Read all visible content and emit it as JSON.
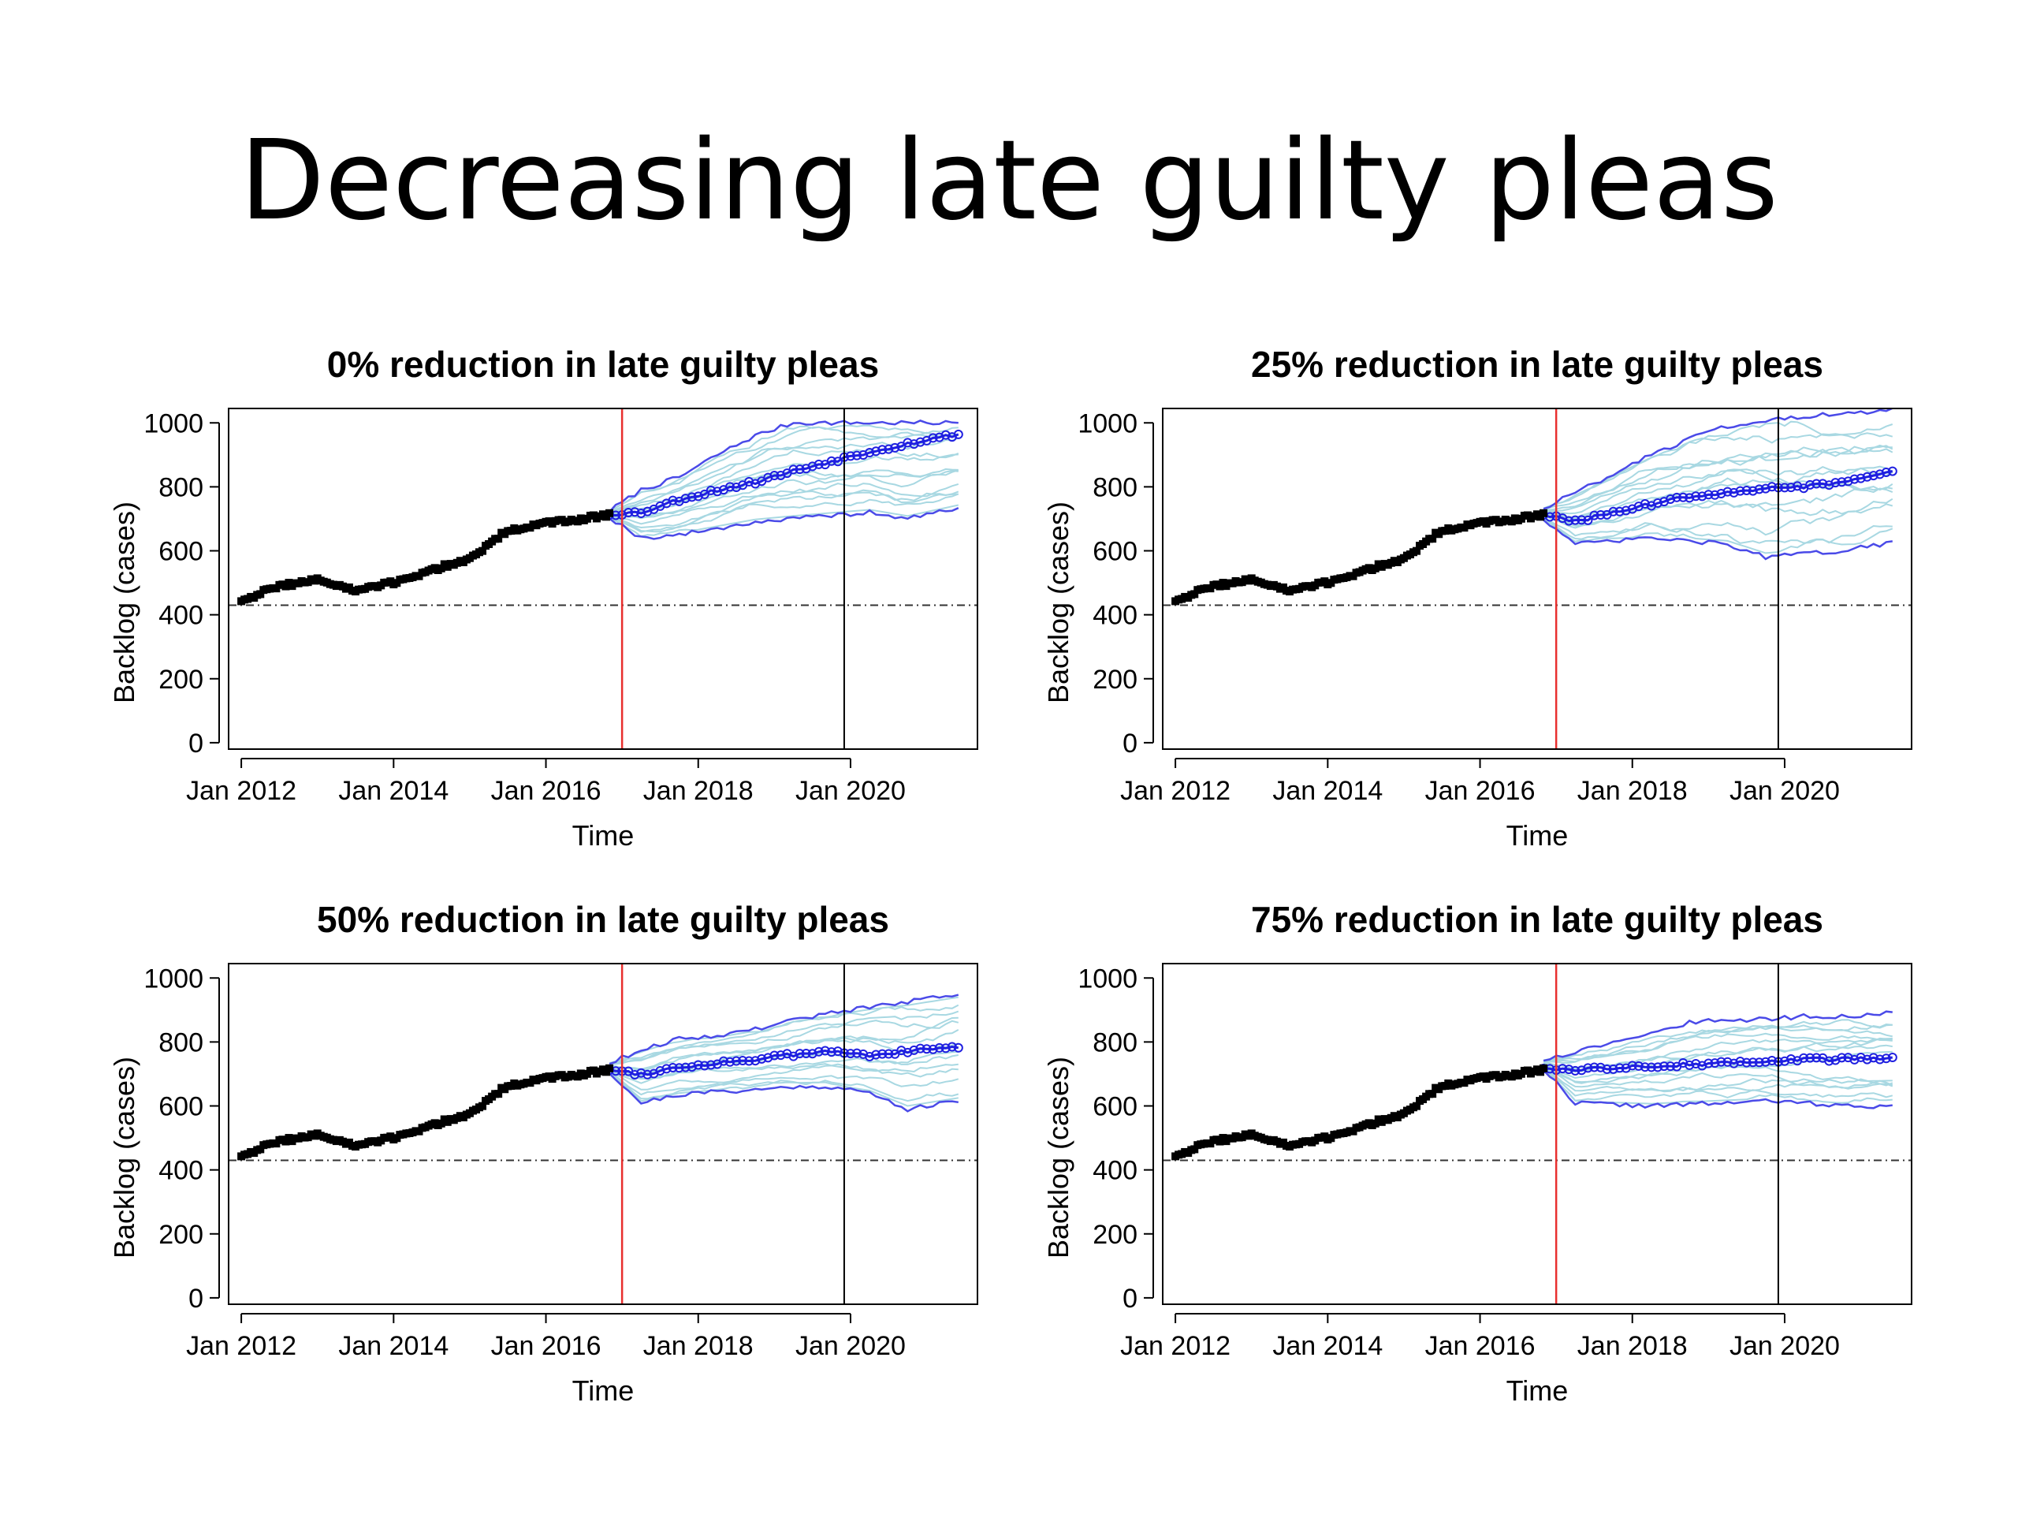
{
  "slide": {
    "title": "Decreasing late guilty pleas"
  },
  "colors": {
    "observed": "#000000",
    "median": "#1f1fe0",
    "interval": "#4a4ae8",
    "simulations": "#a8d8e2",
    "intervention_line": "#e8302f",
    "current_line": "#000000",
    "reference_line": "#333333"
  },
  "chart_data": [
    {
      "type": "line",
      "title": "0% reduction in late guilty pleas",
      "xlabel": "Time",
      "ylabel": "Backlog (cases)",
      "x_ticks": [
        "Jan 2012",
        "Jan 2014",
        "Jan 2016",
        "Jan 2018",
        "Jan 2020"
      ],
      "y_ticks": [
        0,
        200,
        400,
        600,
        800,
        1000
      ],
      "ylim": [
        0,
        1000
      ],
      "xlim": [
        "2011-11",
        "2021-09"
      ],
      "reference_level": 430,
      "intervention_date": "2017-01",
      "current_date": "2019-12",
      "series": [
        {
          "x": [
            "2012-01",
            "2012-07",
            "2013-01",
            "2013-07",
            "2014-01",
            "2014-07",
            "2015-01",
            "2015-07",
            "2016-01",
            "2016-07",
            "2016-11"
          ],
          "values": [
            445,
            490,
            510,
            475,
            500,
            540,
            575,
            665,
            685,
            700,
            715
          ]
        },
        {
          "x": [
            "2016-11",
            "2017-04",
            "2017-10",
            "2018-04",
            "2018-10",
            "2019-04",
            "2019-10",
            "2020-04",
            "2020-10",
            "2021-06"
          ],
          "values": [
            715,
            720,
            760,
            790,
            815,
            850,
            880,
            910,
            935,
            965
          ]
        },
        {
          "x": [
            "2016-11",
            "2017-04",
            "2017-10",
            "2018-04",
            "2018-10",
            "2019-04",
            "2019-10",
            "2020-04",
            "2020-10",
            "2021-06"
          ],
          "values": [
            725,
            790,
            830,
            900,
            960,
            1000,
            1000,
            1000,
            1000,
            1000
          ]
        },
        {
          "x": [
            "2016-11",
            "2017-04",
            "2017-10",
            "2018-04",
            "2018-10",
            "2019-04",
            "2019-10",
            "2020-04",
            "2020-10",
            "2021-06"
          ],
          "values": [
            705,
            640,
            650,
            670,
            690,
            700,
            710,
            720,
            700,
            735
          ]
        }
      ]
    },
    {
      "type": "line",
      "title": "25% reduction in late guilty pleas",
      "xlabel": "Time",
      "ylabel": "Backlog (cases)",
      "x_ticks": [
        "Jan 2012",
        "Jan 2014",
        "Jan 2016",
        "Jan 2018",
        "Jan 2020"
      ],
      "y_ticks": [
        0,
        200,
        400,
        600,
        800,
        1000
      ],
      "ylim": [
        0,
        1000
      ],
      "xlim": [
        "2011-11",
        "2021-09"
      ],
      "reference_level": 430,
      "intervention_date": "2017-01",
      "current_date": "2019-12",
      "series": [
        {
          "x": [
            "2012-01",
            "2012-07",
            "2013-01",
            "2013-07",
            "2014-01",
            "2014-07",
            "2015-01",
            "2015-07",
            "2016-01",
            "2016-07",
            "2016-11"
          ],
          "values": [
            445,
            490,
            510,
            475,
            500,
            540,
            575,
            665,
            685,
            700,
            715
          ]
        },
        {
          "x": [
            "2016-11",
            "2017-04",
            "2017-10",
            "2018-04",
            "2018-10",
            "2019-04",
            "2019-10",
            "2020-04",
            "2020-10",
            "2021-06"
          ],
          "values": [
            715,
            690,
            720,
            745,
            770,
            785,
            795,
            800,
            815,
            845
          ]
        },
        {
          "x": [
            "2016-11",
            "2017-04",
            "2017-10",
            "2018-04",
            "2018-10",
            "2019-04",
            "2019-10",
            "2020-04",
            "2020-10",
            "2021-06"
          ],
          "values": [
            735,
            780,
            840,
            900,
            950,
            990,
            1010,
            1020,
            1030,
            1040
          ]
        },
        {
          "x": [
            "2016-11",
            "2017-04",
            "2017-10",
            "2018-04",
            "2018-10",
            "2019-04",
            "2019-10",
            "2020-04",
            "2020-10",
            "2021-06"
          ],
          "values": [
            700,
            620,
            630,
            640,
            630,
            620,
            580,
            590,
            600,
            625
          ]
        }
      ]
    },
    {
      "type": "line",
      "title": "50% reduction in late guilty pleas",
      "xlabel": "Time",
      "ylabel": "Backlog (cases)",
      "x_ticks": [
        "Jan 2012",
        "Jan 2014",
        "Jan 2016",
        "Jan 2018",
        "Jan 2020"
      ],
      "y_ticks": [
        0,
        200,
        400,
        600,
        800,
        1000
      ],
      "ylim": [
        0,
        1000
      ],
      "xlim": [
        "2011-11",
        "2021-09"
      ],
      "reference_level": 430,
      "intervention_date": "2017-01",
      "current_date": "2019-12",
      "series": [
        {
          "x": [
            "2012-01",
            "2012-07",
            "2013-01",
            "2013-07",
            "2014-01",
            "2014-07",
            "2015-01",
            "2015-07",
            "2016-01",
            "2016-07",
            "2016-11"
          ],
          "values": [
            445,
            490,
            510,
            475,
            500,
            540,
            575,
            665,
            685,
            700,
            715
          ]
        },
        {
          "x": [
            "2016-11",
            "2017-04",
            "2017-10",
            "2018-04",
            "2018-10",
            "2019-04",
            "2019-10",
            "2020-04",
            "2020-10",
            "2021-06"
          ],
          "values": [
            715,
            700,
            720,
            735,
            745,
            760,
            770,
            760,
            770,
            785
          ]
        },
        {
          "x": [
            "2016-11",
            "2017-04",
            "2017-10",
            "2018-04",
            "2018-10",
            "2019-04",
            "2019-10",
            "2020-04",
            "2020-10",
            "2021-06"
          ],
          "values": [
            735,
            775,
            810,
            820,
            840,
            870,
            890,
            910,
            925,
            950
          ]
        },
        {
          "x": [
            "2016-11",
            "2017-04",
            "2017-10",
            "2018-04",
            "2018-10",
            "2019-04",
            "2019-10",
            "2020-04",
            "2020-10",
            "2021-06"
          ],
          "values": [
            705,
            610,
            635,
            645,
            650,
            660,
            660,
            640,
            590,
            615
          ]
        }
      ]
    },
    {
      "type": "line",
      "title": "75% reduction in late guilty pleas",
      "xlabel": "Time",
      "ylabel": "Backlog (cases)",
      "x_ticks": [
        "Jan 2012",
        "Jan 2014",
        "Jan 2016",
        "Jan 2018",
        "Jan 2020"
      ],
      "y_ticks": [
        0,
        200,
        400,
        600,
        800,
        1000
      ],
      "ylim": [
        0,
        1000
      ],
      "xlim": [
        "2011-11",
        "2021-09"
      ],
      "reference_level": 430,
      "intervention_date": "2017-01",
      "current_date": "2019-12",
      "series": [
        {
          "x": [
            "2012-01",
            "2012-07",
            "2013-01",
            "2013-07",
            "2014-01",
            "2014-07",
            "2015-01",
            "2015-07",
            "2016-01",
            "2016-07",
            "2016-11"
          ],
          "values": [
            445,
            490,
            510,
            475,
            500,
            540,
            575,
            665,
            685,
            700,
            715
          ]
        },
        {
          "x": [
            "2016-11",
            "2017-04",
            "2017-10",
            "2018-04",
            "2018-10",
            "2019-04",
            "2019-10",
            "2020-04",
            "2020-10",
            "2021-06"
          ],
          "values": [
            720,
            710,
            720,
            725,
            730,
            735,
            740,
            745,
            745,
            750
          ]
        },
        {
          "x": [
            "2016-11",
            "2017-04",
            "2017-10",
            "2018-04",
            "2018-10",
            "2019-04",
            "2019-10",
            "2020-04",
            "2020-10",
            "2021-06"
          ],
          "values": [
            745,
            770,
            800,
            830,
            860,
            870,
            870,
            880,
            880,
            890
          ]
        },
        {
          "x": [
            "2016-11",
            "2017-04",
            "2017-10",
            "2018-04",
            "2018-10",
            "2019-04",
            "2019-10",
            "2020-04",
            "2020-10",
            "2021-06"
          ],
          "values": [
            715,
            610,
            605,
            600,
            605,
            610,
            615,
            610,
            600,
            600
          ]
        }
      ]
    }
  ]
}
